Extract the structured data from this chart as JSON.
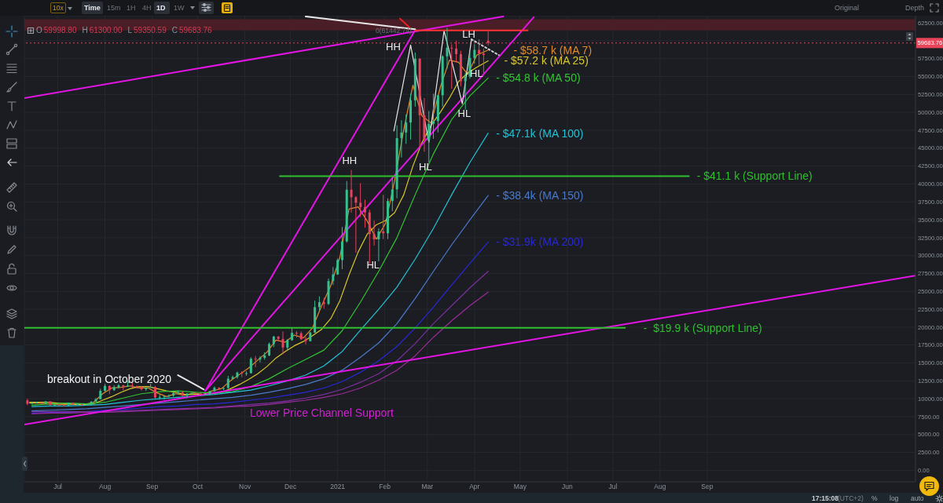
{
  "chart_data": {
    "type": "candlestick",
    "x": [
      "2020-06-11",
      "2020-06-14",
      "2020-06-17",
      "2020-06-20",
      "2020-06-23",
      "2020-06-26",
      "2020-06-29",
      "2020-07-02",
      "2020-07-05",
      "2020-07-08",
      "2020-07-11",
      "2020-07-14",
      "2020-07-17",
      "2020-07-20",
      "2020-07-23",
      "2020-07-26",
      "2020-07-29",
      "2020-08-01",
      "2020-08-04",
      "2020-08-07",
      "2020-08-10",
      "2020-08-13",
      "2020-08-16",
      "2020-08-19",
      "2020-08-22",
      "2020-08-25",
      "2020-08-28",
      "2020-08-31",
      "2020-09-03",
      "2020-09-06",
      "2020-09-09",
      "2020-09-12",
      "2020-09-15",
      "2020-09-18",
      "2020-09-21",
      "2020-09-24",
      "2020-09-27",
      "2020-09-30",
      "2020-10-03",
      "2020-10-06",
      "2020-10-09",
      "2020-10-12",
      "2020-10-15",
      "2020-10-18",
      "2020-10-21",
      "2020-10-24",
      "2020-10-27",
      "2020-10-30",
      "2020-11-02",
      "2020-11-05",
      "2020-11-08",
      "2020-11-11",
      "2020-11-14",
      "2020-11-17",
      "2020-11-20",
      "2020-11-23",
      "2020-11-26",
      "2020-11-29",
      "2020-12-02",
      "2020-12-05",
      "2020-12-08",
      "2020-12-11",
      "2020-12-14",
      "2020-12-17",
      "2020-12-20",
      "2020-12-23",
      "2020-12-26",
      "2020-12-29",
      "2021-01-01",
      "2021-01-04",
      "2021-01-07",
      "2021-01-10",
      "2021-01-13",
      "2021-01-16",
      "2021-01-19",
      "2021-01-22",
      "2021-01-25",
      "2021-01-28",
      "2021-01-31",
      "2021-02-03",
      "2021-02-06",
      "2021-02-09",
      "2021-02-12",
      "2021-02-15",
      "2021-02-18",
      "2021-02-21",
      "2021-02-24",
      "2021-02-27",
      "2021-03-02",
      "2021-03-05",
      "2021-03-08",
      "2021-03-11",
      "2021-03-14",
      "2021-03-17",
      "2021-03-20",
      "2021-03-23",
      "2021-03-26",
      "2021-03-29",
      "2021-04-01",
      "2021-04-04",
      "2021-04-07",
      "2021-04-10"
    ],
    "ohlc": [
      [
        9780,
        9990,
        9100,
        9300
      ],
      [
        9300,
        9500,
        9230,
        9440
      ],
      [
        9440,
        9590,
        9360,
        9450
      ],
      [
        9450,
        9480,
        9280,
        9380
      ],
      [
        9380,
        9700,
        9270,
        9630
      ],
      [
        9630,
        9660,
        9050,
        9160
      ],
      [
        9160,
        9230,
        8960,
        9190
      ],
      [
        9190,
        9300,
        8990,
        9090
      ],
      [
        9090,
        9200,
        8930,
        9070
      ],
      [
        9070,
        9470,
        9050,
        9440
      ],
      [
        9440,
        9450,
        9120,
        9230
      ],
      [
        9230,
        9340,
        9140,
        9250
      ],
      [
        9250,
        9280,
        9060,
        9150
      ],
      [
        9150,
        9220,
        9100,
        9160
      ],
      [
        9160,
        9650,
        9130,
        9600
      ],
      [
        9600,
        10100,
        9510,
        9930
      ],
      [
        9930,
        11400,
        9910,
        11110
      ],
      [
        11110,
        12100,
        10930,
        11800
      ],
      [
        11800,
        11850,
        10650,
        11200
      ],
      [
        11200,
        11900,
        11100,
        11600
      ],
      [
        11600,
        12080,
        11420,
        11880
      ],
      [
        11880,
        11950,
        11200,
        11760
      ],
      [
        11760,
        12480,
        11650,
        11850
      ],
      [
        11850,
        12300,
        11560,
        11750
      ],
      [
        11750,
        11850,
        11400,
        11680
      ],
      [
        11680,
        11760,
        11150,
        11330
      ],
      [
        11330,
        11600,
        11100,
        11530
      ],
      [
        11530,
        12090,
        11520,
        11650
      ],
      [
        11650,
        11800,
        10000,
        10170
      ],
      [
        10170,
        10560,
        9890,
        10250
      ],
      [
        10250,
        10450,
        9880,
        10330
      ],
      [
        10330,
        10600,
        10200,
        10440
      ],
      [
        10440,
        10950,
        10280,
        10790
      ],
      [
        10790,
        11100,
        10650,
        10930
      ],
      [
        10930,
        11050,
        10350,
        10420
      ],
      [
        10420,
        10800,
        10130,
        10740
      ],
      [
        10740,
        10950,
        10630,
        10780
      ],
      [
        10780,
        10880,
        10650,
        10720
      ],
      [
        10720,
        10950,
        10400,
        10550
      ],
      [
        10550,
        10800,
        10520,
        10600
      ],
      [
        10600,
        11100,
        10530,
        11060
      ],
      [
        11060,
        11720,
        11000,
        11550
      ],
      [
        11550,
        11600,
        11250,
        11500
      ],
      [
        11500,
        11550,
        11220,
        11510
      ],
      [
        11510,
        13200,
        11400,
        12800
      ],
      [
        12800,
        13250,
        12700,
        13030
      ],
      [
        13030,
        13800,
        12800,
        13650
      ],
      [
        13650,
        13850,
        13000,
        13550
      ],
      [
        13550,
        13830,
        13200,
        13580
      ],
      [
        13580,
        15800,
        13520,
        15590
      ],
      [
        15590,
        15970,
        14400,
        15480
      ],
      [
        15480,
        15950,
        15080,
        15700
      ],
      [
        15700,
        16500,
        15450,
        16050
      ],
      [
        16050,
        17850,
        15950,
        17650
      ],
      [
        17650,
        18800,
        17210,
        18680
      ],
      [
        18680,
        18750,
        18000,
        18360
      ],
      [
        18360,
        19400,
        16200,
        17150
      ],
      [
        17150,
        18350,
        16700,
        18180
      ],
      [
        18180,
        19900,
        18100,
        19200
      ],
      [
        19200,
        19450,
        18550,
        19150
      ],
      [
        19150,
        19400,
        18200,
        18320
      ],
      [
        18320,
        18650,
        17600,
        18050
      ],
      [
        18050,
        19350,
        18000,
        19250
      ],
      [
        19250,
        23700,
        19200,
        22800
      ],
      [
        22800,
        24300,
        22350,
        23480
      ],
      [
        23480,
        24100,
        22600,
        23240
      ],
      [
        23240,
        26800,
        23100,
        26440
      ],
      [
        26440,
        28400,
        25900,
        27360
      ],
      [
        27360,
        29600,
        27300,
        29370
      ],
      [
        29370,
        34000,
        28100,
        31970
      ],
      [
        31970,
        40400,
        31800,
        39200
      ],
      [
        39200,
        41950,
        36000,
        38150
      ],
      [
        38150,
        38300,
        30400,
        37370
      ],
      [
        37370,
        40100,
        35400,
        36770
      ],
      [
        36770,
        37800,
        33900,
        36020
      ],
      [
        36020,
        36400,
        28800,
        33000
      ],
      [
        33000,
        34900,
        31400,
        32270
      ],
      [
        32270,
        33800,
        29200,
        33370
      ],
      [
        33370,
        38500,
        32300,
        33110
      ],
      [
        33110,
        38000,
        32300,
        37620
      ],
      [
        37620,
        40900,
        36200,
        39240
      ],
      [
        39240,
        48200,
        38000,
        46400
      ],
      [
        46400,
        48900,
        43700,
        47190
      ],
      [
        47190,
        49700,
        45600,
        48580
      ],
      [
        48580,
        52600,
        46200,
        51680
      ],
      [
        51680,
        58350,
        50800,
        57490
      ],
      [
        57490,
        57550,
        45000,
        49590
      ],
      [
        49590,
        52000,
        44500,
        46150
      ],
      [
        46150,
        50200,
        43000,
        48400
      ],
      [
        48400,
        52600,
        46300,
        48780
      ],
      [
        48780,
        52400,
        47200,
        52390
      ],
      [
        52390,
        58000,
        50800,
        57820
      ],
      [
        57820,
        61800,
        56100,
        59020
      ],
      [
        59020,
        59500,
        53300,
        58910
      ],
      [
        58910,
        60000,
        57000,
        58130
      ],
      [
        58130,
        58600,
        53650,
        54340
      ],
      [
        54340,
        55500,
        50400,
        55000
      ],
      [
        55000,
        58400,
        54700,
        57600
      ],
      [
        57600,
        59500,
        56800,
        58730
      ],
      [
        58730,
        60200,
        56500,
        58200
      ],
      [
        58200,
        58900,
        55500,
        58000
      ],
      [
        59998.8,
        61300,
        59350.59,
        59683.76
      ]
    ],
    "colors": [
      "#e8425c",
      "#35c08e",
      "#35c08e",
      "#e8425c",
      "#35c08e",
      "#e8425c",
      "#35c08e",
      "#e8425c",
      "#e8425c",
      "#35c08e",
      "#e8425c",
      "#35c08e",
      "#e8425c",
      "#35c08e",
      "#35c08e",
      "#35c08e",
      "#35c08e",
      "#35c08e",
      "#e8425c",
      "#35c08e",
      "#35c08e",
      "#e8425c",
      "#35c08e",
      "#e8425c",
      "#e8425c",
      "#e8425c",
      "#35c08e",
      "#35c08e",
      "#e8425c",
      "#35c08e",
      "#35c08e",
      "#35c08e",
      "#35c08e",
      "#35c08e",
      "#e8425c",
      "#35c08e",
      "#35c08e",
      "#e8425c",
      "#e8425c",
      "#35c08e",
      "#35c08e",
      "#35c08e",
      "#e8425c",
      "#35c08e",
      "#35c08e",
      "#35c08e",
      "#35c08e",
      "#e8425c",
      "#35c08e",
      "#35c08e",
      "#e8425c",
      "#35c08e",
      "#35c08e",
      "#35c08e",
      "#35c08e",
      "#e8425c",
      "#e8425c",
      "#35c08e",
      "#35c08e",
      "#e8425c",
      "#e8425c",
      "#e8425c",
      "#35c08e",
      "#35c08e",
      "#35c08e",
      "#e8425c",
      "#35c08e",
      "#35c08e",
      "#35c08e",
      "#35c08e",
      "#35c08e",
      "#e8425c",
      "#e8425c",
      "#e8425c",
      "#e8425c",
      "#e8425c",
      "#e8425c",
      "#35c08e",
      "#e8425c",
      "#35c08e",
      "#35c08e",
      "#35c08e",
      "#35c08e",
      "#35c08e",
      "#35c08e",
      "#35c08e",
      "#e8425c",
      "#e8425c",
      "#35c08e",
      "#35c08e",
      "#35c08e",
      "#35c08e",
      "#35c08e",
      "#e8425c",
      "#e8425c",
      "#e8425c",
      "#35c08e",
      "#35c08e",
      "#35c08e",
      "#e8425c",
      "#e8425c",
      "#e8425c"
    ],
    "series": [
      {
        "type": "line",
        "name": "- $58.7 k (MA 7)",
        "color": "#e08a2c",
        "x": [
          "2020-06-12T12:00",
          "2020-06-18T12:00",
          "2020-06-24T12:00",
          "2020-06-30T12:00",
          "2020-07-06T12:00",
          "2020-07-12T12:00",
          "2020-07-18T12:00",
          "2020-07-24T12:00",
          "2020-07-30T12:00",
          "2020-08-05T12:00",
          "2020-08-11T12:00",
          "2020-08-17T12:00",
          "2020-08-23T12:00",
          "2020-08-29T12:00",
          "2020-09-04T12:00",
          "2020-09-10T12:00",
          "2020-09-16T12:00",
          "2020-09-22T12:00",
          "2020-09-28T12:00",
          "2020-10-04T12:00",
          "2020-10-10T12:00",
          "2020-10-16T12:00",
          "2020-10-22T12:00",
          "2020-10-28T12:00",
          "2020-11-03T12:00",
          "2020-11-09T12:00",
          "2020-11-15T12:00",
          "2020-11-21T12:00",
          "2020-11-27T12:00",
          "2020-12-03T12:00",
          "2020-12-09T12:00",
          "2020-12-15T12:00",
          "2020-12-21T12:00",
          "2020-12-27T12:00",
          "2021-01-02T12:00",
          "2021-01-08T12:00",
          "2021-01-14T12:00",
          "2021-01-20T12:00",
          "2021-01-26T12:00",
          "2021-02-01T12:00",
          "2021-02-07T12:00",
          "2021-02-13T12:00",
          "2021-02-19T12:00",
          "2021-02-25T12:00",
          "2021-03-03T12:00",
          "2021-03-09T12:00",
          "2021-03-15T12:00",
          "2021-03-21T12:00",
          "2021-03-27T12:00",
          "2021-04-02T12:00",
          "2021-04-10"
        ],
        "values": [
          9400,
          9400,
          9300,
          9200,
          9200,
          9300,
          9200,
          9500,
          10700,
          11500,
          11600,
          11800,
          11500,
          11500,
          10800,
          10300,
          10700,
          10500,
          10800,
          10600,
          11100,
          11400,
          12500,
          13400,
          14300,
          15400,
          16500,
          18200,
          17900,
          18900,
          18500,
          19900,
          23000,
          25800,
          29800,
          36500,
          36800,
          34800,
          32300,
          34500,
          40500,
          47600,
          53800,
          49500,
          48500,
          53500,
          57300,
          57000,
          55300,
          58000,
          58700
        ]
      },
      {
        "type": "line",
        "name": "- $57.2 k (MA 25)",
        "color": "#d9c82b",
        "x": [
          "2020-06-12T12:00",
          "2020-06-18T12:00",
          "2020-06-24T12:00",
          "2020-06-30T12:00",
          "2020-07-06T12:00",
          "2020-07-12T12:00",
          "2020-07-18T12:00",
          "2020-07-24T12:00",
          "2020-07-30T12:00",
          "2020-08-05T12:00",
          "2020-08-11T12:00",
          "2020-08-17T12:00",
          "2020-08-23T12:00",
          "2020-08-29T12:00",
          "2020-09-04T12:00",
          "2020-09-10T12:00",
          "2020-09-16T12:00",
          "2020-09-22T12:00",
          "2020-09-28T12:00",
          "2020-10-04T12:00",
          "2020-10-10T12:00",
          "2020-10-16T12:00",
          "2020-10-22T12:00",
          "2020-10-28T12:00",
          "2020-11-03T12:00",
          "2020-11-09T12:00",
          "2020-11-15T12:00",
          "2020-11-21T12:00",
          "2020-11-27T12:00",
          "2020-12-03T12:00",
          "2020-12-09T12:00",
          "2020-12-15T12:00",
          "2020-12-21T12:00",
          "2020-12-27T12:00",
          "2021-01-02T12:00",
          "2021-01-08T12:00",
          "2021-01-14T12:00",
          "2021-01-20T12:00",
          "2021-01-26T12:00",
          "2021-02-01T12:00",
          "2021-02-07T12:00",
          "2021-02-13T12:00",
          "2021-02-19T12:00",
          "2021-02-25T12:00",
          "2021-03-03T12:00",
          "2021-03-09T12:00",
          "2021-03-15T12:00",
          "2021-03-21T12:00",
          "2021-03-27T12:00",
          "2021-04-02T12:00",
          "2021-04-10"
        ],
        "values": [
          9500,
          9500,
          9500,
          9400,
          9300,
          9200,
          9200,
          9300,
          9800,
          10300,
          10900,
          11400,
          11700,
          11700,
          11400,
          11100,
          10900,
          10600,
          10600,
          10600,
          10700,
          10900,
          11400,
          12000,
          12700,
          13500,
          14500,
          15700,
          16600,
          17400,
          18000,
          18800,
          19700,
          21200,
          23700,
          27300,
          30500,
          33000,
          34300,
          34900,
          36000,
          38500,
          42500,
          45800,
          48200,
          50000,
          52000,
          54300,
          55500,
          56300,
          57200
        ]
      },
      {
        "type": "line",
        "name": "- $54.8 k (MA 50)",
        "color": "#33c433",
        "x": [
          "2020-06-14",
          "2020-06-26",
          "2020-07-08",
          "2020-07-20",
          "2020-08-01",
          "2020-08-13",
          "2020-08-25",
          "2020-09-06",
          "2020-09-18",
          "2020-09-30",
          "2020-10-12",
          "2020-10-24",
          "2020-11-05",
          "2020-11-17",
          "2020-11-29",
          "2020-12-11",
          "2020-12-23",
          "2021-01-04",
          "2021-01-16",
          "2021-01-28",
          "2021-02-09",
          "2021-02-21",
          "2021-03-05",
          "2021-03-17",
          "2021-03-29",
          "2021-04-10"
        ],
        "values": [
          9100,
          9300,
          9400,
          9300,
          9500,
          10100,
          10700,
          11000,
          11100,
          10900,
          10800,
          11000,
          11700,
          12800,
          14200,
          15500,
          16800,
          19500,
          23500,
          27800,
          32500,
          38500,
          44200,
          49000,
          52300,
          54800
        ]
      },
      {
        "type": "line",
        "name": "- $47.1k (MA 100)",
        "color": "#22c3d6",
        "x": [
          "2020-06-14",
          "2020-06-26",
          "2020-07-08",
          "2020-07-20",
          "2020-08-01",
          "2020-08-13",
          "2020-08-25",
          "2020-09-06",
          "2020-09-18",
          "2020-09-30",
          "2020-10-12",
          "2020-10-24",
          "2020-11-05",
          "2020-11-17",
          "2020-11-29",
          "2020-12-11",
          "2020-12-23",
          "2021-01-04",
          "2021-01-16",
          "2021-01-28",
          "2021-02-09",
          "2021-02-21",
          "2021-03-05",
          "2021-03-17",
          "2021-03-29",
          "2021-04-10"
        ],
        "values": [
          8900,
          9000,
          9000,
          9100,
          9200,
          9500,
          9800,
          10000,
          10200,
          10400,
          10600,
          10900,
          11200,
          11800,
          12500,
          13300,
          14600,
          16600,
          19600,
          22500,
          25600,
          29500,
          33800,
          38500,
          43000,
          47100
        ]
      },
      {
        "type": "line",
        "name": "- $38.4k (MA 150)",
        "color": "#4a7acc",
        "x": [
          "2020-06-14",
          "2020-06-26",
          "2020-07-08",
          "2020-07-20",
          "2020-08-01",
          "2020-08-13",
          "2020-08-25",
          "2020-09-06",
          "2020-09-18",
          "2020-09-30",
          "2020-10-12",
          "2020-10-24",
          "2020-11-05",
          "2020-11-17",
          "2020-11-29",
          "2020-12-11",
          "2020-12-23",
          "2021-01-04",
          "2021-01-16",
          "2021-01-28",
          "2021-02-09",
          "2021-02-21",
          "2021-03-05",
          "2021-03-17",
          "2021-03-29",
          "2021-04-10"
        ],
        "values": [
          8300,
          8400,
          8500,
          8600,
          8800,
          9000,
          9200,
          9400,
          9600,
          9800,
          10000,
          10200,
          10500,
          10900,
          11400,
          12000,
          12800,
          14000,
          15800,
          17800,
          20500,
          24000,
          27800,
          31500,
          35000,
          38400
        ]
      },
      {
        "type": "line",
        "name": "- $31.9k (MA 200)",
        "color": "#2828d8",
        "x": [
          "2020-06-14",
          "2020-06-26",
          "2020-07-08",
          "2020-07-20",
          "2020-08-01",
          "2020-08-13",
          "2020-08-25",
          "2020-09-06",
          "2020-09-18",
          "2020-09-30",
          "2020-10-12",
          "2020-10-24",
          "2020-11-05",
          "2020-11-17",
          "2020-11-29",
          "2020-12-11",
          "2020-12-23",
          "2021-01-04",
          "2021-01-16",
          "2021-01-28",
          "2021-02-09",
          "2021-02-21",
          "2021-03-05",
          "2021-03-17",
          "2021-03-29",
          "2021-04-10"
        ],
        "values": [
          8000,
          8100,
          8100,
          8200,
          8400,
          8500,
          8700,
          8900,
          9000,
          9200,
          9300,
          9500,
          9800,
          10100,
          10500,
          10900,
          11500,
          12400,
          13700,
          15300,
          17300,
          19900,
          22800,
          25900,
          28900,
          31900
        ]
      },
      {
        "type": "line",
        "color": "#7b2fa0",
        "x": [
          "2020-06-14",
          "2020-06-26",
          "2020-07-08",
          "2020-07-20",
          "2020-08-01",
          "2020-08-13",
          "2020-08-25",
          "2020-09-06",
          "2020-09-18",
          "2020-09-30",
          "2020-10-12",
          "2020-10-24",
          "2020-11-05",
          "2020-11-17",
          "2020-11-29",
          "2020-12-11",
          "2020-12-23",
          "2021-01-04",
          "2021-01-16",
          "2021-01-28",
          "2021-02-09",
          "2021-02-21",
          "2021-03-05",
          "2021-03-17",
          "2021-03-29",
          "2021-04-10"
        ],
        "values": [
          8200,
          8200,
          8200,
          8200,
          8200,
          8300,
          8400,
          8500,
          8600,
          8700,
          8800,
          9000,
          9200,
          9400,
          9700,
          10100,
          10600,
          11300,
          12300,
          13500,
          15300,
          17700,
          20500,
          23000,
          25500,
          27800
        ]
      },
      {
        "type": "line",
        "color": "#9a2c9a",
        "x": [
          "2020-06-14",
          "2020-06-26",
          "2020-07-08",
          "2020-07-20",
          "2020-08-01",
          "2020-08-13",
          "2020-08-25",
          "2020-09-06",
          "2020-09-18",
          "2020-09-30",
          "2020-10-12",
          "2020-10-24",
          "2020-11-05",
          "2020-11-17",
          "2020-11-29",
          "2020-12-11",
          "2020-12-23",
          "2021-01-04",
          "2021-01-16",
          "2021-01-28",
          "2021-02-09",
          "2021-02-21",
          "2021-03-05",
          "2021-03-17",
          "2021-03-29",
          "2021-04-10"
        ],
        "values": [
          7900,
          8000,
          8000,
          8100,
          8100,
          8200,
          8300,
          8400,
          8500,
          8600,
          8700,
          8900,
          9000,
          9200,
          9500,
          9800,
          10200,
          10700,
          11500,
          12600,
          14000,
          16000,
          18600,
          20900,
          23000,
          24900
        ]
      },
      {
        "type": "line",
        "color": "#e414e4",
        "x": [
          "2020-06-09",
          "2021-04-20"
        ],
        "values": [
          52000,
          63400
        ]
      },
      {
        "type": "line",
        "color": "#e414e4",
        "x": [
          "2020-06-09",
          "2022-01-16"
        ],
        "values": [
          6400,
          27200
        ]
      },
      {
        "type": "line",
        "color": "#e414e4",
        "x": [
          "2020-10-06",
          "2021-02-21"
        ],
        "values": [
          11100,
          61500
        ]
      },
      {
        "type": "line",
        "color": "#e414e4",
        "x": [
          "2020-10-06",
          "2021-05-10"
        ],
        "values": [
          11100,
          63300
        ]
      },
      {
        "type": "line",
        "color": "#e6e6e6",
        "x": [
          "2021-02-07",
          "2021-02-18",
          "2021-03-02",
          "2021-03-12",
          "2021-03-24",
          "2021-03-30"
        ],
        "values": [
          47400,
          59400,
          45800,
          61400,
          51200,
          60200
        ]
      },
      {
        "type": "line",
        "color": "#d0d0d0",
        "line_style": "dotted",
        "x": [
          "2021-03-30",
          "2021-04-17"
        ],
        "values": [
          60200,
          58000
        ]
      },
      {
        "type": "line",
        "color": "#e6e6e6",
        "x": [
          "2020-12-11",
          "2021-02-21"
        ],
        "values": [
          63400,
          61600
        ]
      },
      {
        "type": "line",
        "color": "#e82222",
        "x": [
          "2021-02-11",
          "2021-02-17"
        ],
        "values": [
          63100,
          61900
        ]
      },
      {
        "type": "line",
        "color": "#ff3333",
        "x": [
          "2021-02-21",
          "2021-05-06"
        ],
        "values": [
          61442.74,
          61442.74
        ]
      },
      {
        "type": "line",
        "name": "- $41.1 k (Support Line)",
        "color": "#2fbf2f",
        "x": [
          "2020-11-24",
          "2021-08-20"
        ],
        "values": [
          41100,
          41100
        ]
      },
      {
        "type": "line",
        "name": "-  $19.9 k (Support Line)",
        "color": "#2fbf2f",
        "x": [
          "2020-06-09",
          "2021-07-09"
        ],
        "values": [
          19900,
          19900
        ]
      },
      {
        "type": "line",
        "color": "#e6e6e6",
        "x": [
          "2020-09-18",
          "2020-10-05"
        ],
        "values": [
          13300,
          11300
        ]
      }
    ],
    "xlim": [
      "2020-06-09",
      "2022-01-16"
    ],
    "xticks": [
      {
        "value": "2020-07-01",
        "label": "Jul"
      },
      {
        "value": "2020-08-01",
        "label": "Aug"
      },
      {
        "value": "2020-09-01",
        "label": "Sep"
      },
      {
        "value": "2020-10-01",
        "label": "Oct"
      },
      {
        "value": "2020-11-01",
        "label": "Nov"
      },
      {
        "value": "2020-12-01",
        "label": "Dec"
      },
      {
        "value": "2021-01-01",
        "label": "2021"
      },
      {
        "value": "2021-02-01",
        "label": "Feb"
      },
      {
        "value": "2021-03-01",
        "label": "Mar"
      },
      {
        "value": "2021-04-01",
        "label": "Apr"
      },
      {
        "value": "2021-05-01",
        "label": "May"
      },
      {
        "value": "2021-06-01",
        "label": "Jun"
      },
      {
        "value": "2021-07-01",
        "label": "Jul"
      },
      {
        "value": "2021-08-01",
        "label": "Aug"
      },
      {
        "value": "2021-09-01",
        "label": "Sep"
      }
    ],
    "ylim": [
      -1600,
      63500
    ],
    "yticks": [
      {
        "value": 0,
        "label": "0.00"
      },
      {
        "value": 2500,
        "label": "2500.00"
      },
      {
        "value": 5000,
        "label": "5000.00"
      },
      {
        "value": 7500,
        "label": "7500.00"
      },
      {
        "value": 10000,
        "label": "10000.00"
      },
      {
        "value": 12500,
        "label": "12500.00"
      },
      {
        "value": 15000,
        "label": "15000.00"
      },
      {
        "value": 17500,
        "label": "17500.00"
      },
      {
        "value": 20000,
        "label": "20000.00"
      },
      {
        "value": 22500,
        "label": "22500.00"
      },
      {
        "value": 25000,
        "label": "25000.00"
      },
      {
        "value": 27500,
        "label": "27500.00"
      },
      {
        "value": 30000,
        "label": "30000.00"
      },
      {
        "value": 32500,
        "label": "32500.00"
      },
      {
        "value": 35000,
        "label": "35000.00"
      },
      {
        "value": 37500,
        "label": "37500.00"
      },
      {
        "value": 40000,
        "label": "40000.00"
      },
      {
        "value": 42500,
        "label": "42500.00"
      },
      {
        "value": 45000,
        "label": "45000.00"
      },
      {
        "value": 47500,
        "label": "47500.00"
      },
      {
        "value": 50000,
        "label": "50000.00"
      },
      {
        "value": 52500,
        "label": "52500.00"
      },
      {
        "value": 55000,
        "label": "55000.00"
      },
      {
        "value": 57500,
        "label": "57500.00"
      },
      {
        "value": 60000,
        "label": null
      },
      {
        "value": 62500,
        "label": "62500.00"
      }
    ],
    "grid": true,
    "ref_lines": [
      {
        "axis": "y",
        "value": 59683.76,
        "label": "59683.76",
        "color": "#e8455a",
        "line_style": "dotted"
      }
    ],
    "bands": [
      {
        "axis": "y",
        "from": 61442.74,
        "to": 63000,
        "color": "#4a1e27"
      }
    ],
    "annotations": [
      "O 59998.80 H 61300.00 L 59350.59 C 59683.76",
      "10x",
      "Time",
      "15m",
      "1H",
      "4H",
      "1D",
      "1W",
      "Original",
      "Depth",
      "17:15:08",
      "(UTC+2)",
      "%",
      "log",
      "auto",
      "breakout in October 2020",
      "Lower Price Channel Support",
      "HH",
      "HL",
      {
        "text": "0(61442.74)",
        "x": "2021-01-26",
        "y": 61442.74
      },
      {
        "text": "HH",
        "x": "2021-01-04",
        "y": 43300
      },
      {
        "text": "HL",
        "x": "2021-01-20",
        "y": 28700
      },
      {
        "text": "HL",
        "x": "2021-03-21",
        "y": 49900
      },
      {
        "text": "LH",
        "x": "2021-03-24",
        "y": 60900
      },
      {
        "text": "HL",
        "x": "2021-03-29",
        "y": 55400
      }
    ]
  }
}
